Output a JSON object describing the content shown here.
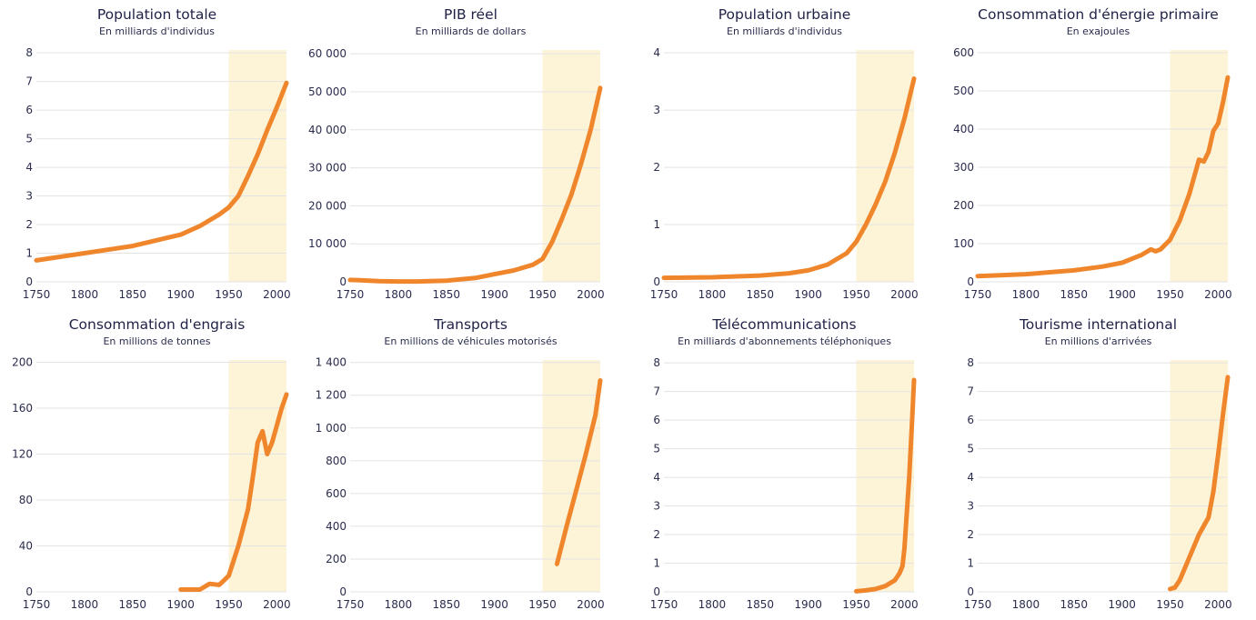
{
  "colors": {
    "line": "#f0862c",
    "highlight_band": "#fdf3d6",
    "grid": "#e3e3e3",
    "text": "#1f2146"
  },
  "chart_data": [
    {
      "type": "line",
      "title": "Population totale",
      "subtitle": "En milliards d'individus",
      "xlabel": "",
      "ylabel": "",
      "xlim": [
        1750,
        2010
      ],
      "ylim": [
        0,
        8
      ],
      "ymax_plot": 8.1,
      "grid": true,
      "highlight_start": 1950,
      "x_ticks": [
        1750,
        1800,
        1850,
        1900,
        1950,
        2000
      ],
      "y_ticks": [
        0,
        1,
        2,
        3,
        4,
        5,
        6,
        7,
        8
      ],
      "y_tick_labels": [
        "0",
        "1",
        "2",
        "3",
        "4",
        "5",
        "6",
        "7",
        "8"
      ],
      "series": [
        {
          "x": [
            1750,
            1800,
            1850,
            1900,
            1920,
            1940,
            1950,
            1960,
            1970,
            1980,
            1990,
            2000,
            2010
          ],
          "values": [
            0.75,
            1.0,
            1.25,
            1.65,
            1.95,
            2.35,
            2.6,
            3.0,
            3.7,
            4.45,
            5.3,
            6.1,
            6.95
          ]
        }
      ]
    },
    {
      "type": "line",
      "title": "PIB réel",
      "subtitle": "En milliards de dollars",
      "xlabel": "",
      "ylabel": "",
      "xlim": [
        1750,
        2010
      ],
      "ylim": [
        0,
        60000
      ],
      "ymax_plot": 61000,
      "grid": true,
      "highlight_start": 1950,
      "x_ticks": [
        1750,
        1800,
        1850,
        1900,
        1950,
        2000
      ],
      "y_ticks": [
        0,
        10000,
        20000,
        30000,
        40000,
        50000,
        60000
      ],
      "y_tick_labels": [
        "0",
        "10 000",
        "20 000",
        "30 000",
        "40 000",
        "50 000",
        "60 000"
      ],
      "series": [
        {
          "x": [
            1750,
            1760,
            1780,
            1800,
            1820,
            1850,
            1880,
            1900,
            1920,
            1940,
            1950,
            1960,
            1970,
            1980,
            1990,
            2000,
            2010
          ],
          "values": [
            500,
            400,
            200,
            100,
            100,
            300,
            1000,
            2000,
            3000,
            4500,
            6000,
            10500,
            16500,
            23000,
            31000,
            40000,
            51000
          ]
        }
      ]
    },
    {
      "type": "line",
      "title": "Population urbaine",
      "subtitle": "En milliards d'individus",
      "xlabel": "",
      "ylabel": "",
      "xlim": [
        1750,
        2010
      ],
      "ylim": [
        0,
        4
      ],
      "ymax_plot": 4.05,
      "grid": true,
      "highlight_start": 1950,
      "x_ticks": [
        1750,
        1800,
        1850,
        1900,
        1950,
        2000
      ],
      "y_ticks": [
        0,
        1,
        2,
        3,
        4
      ],
      "y_tick_labels": [
        "0",
        "1",
        "2",
        "3",
        "4"
      ],
      "series": [
        {
          "x": [
            1750,
            1800,
            1850,
            1880,
            1900,
            1920,
            1940,
            1950,
            1960,
            1970,
            1980,
            1990,
            2000,
            2010
          ],
          "values": [
            0.07,
            0.08,
            0.11,
            0.15,
            0.2,
            0.3,
            0.5,
            0.7,
            1.0,
            1.35,
            1.75,
            2.25,
            2.85,
            3.55
          ]
        }
      ]
    },
    {
      "type": "line",
      "title": "Consommation d'énergie primaire",
      "subtitle": "En exajoules",
      "xlabel": "",
      "ylabel": "",
      "xlim": [
        1750,
        2010
      ],
      "ylim": [
        0,
        600
      ],
      "ymax_plot": 607,
      "grid": true,
      "highlight_start": 1950,
      "x_ticks": [
        1750,
        1800,
        1850,
        1900,
        1950,
        2000
      ],
      "y_ticks": [
        0,
        100,
        200,
        300,
        400,
        500,
        600
      ],
      "y_tick_labels": [
        "0",
        "100",
        "200",
        "300",
        "400",
        "500",
        "600"
      ],
      "series": [
        {
          "x": [
            1750,
            1800,
            1850,
            1880,
            1900,
            1920,
            1930,
            1935,
            1940,
            1950,
            1960,
            1970,
            1980,
            1985,
            1990,
            1995,
            2000,
            2005,
            2010
          ],
          "values": [
            15,
            20,
            30,
            40,
            50,
            70,
            85,
            80,
            85,
            110,
            160,
            230,
            320,
            315,
            340,
            395,
            415,
            470,
            535
          ]
        }
      ]
    },
    {
      "type": "line",
      "title": "Consommation d'engrais",
      "subtitle": "En millions de tonnes",
      "xlabel": "",
      "ylabel": "",
      "xlim": [
        1750,
        2010
      ],
      "ylim": [
        0,
        200
      ],
      "ymax_plot": 202,
      "grid": true,
      "highlight_start": 1950,
      "x_ticks": [
        1750,
        1800,
        1850,
        1900,
        1950,
        2000
      ],
      "y_ticks": [
        0,
        40,
        80,
        120,
        160,
        200
      ],
      "y_tick_labels": [
        "0",
        "40",
        "80",
        "120",
        "160",
        "200"
      ],
      "series": [
        {
          "x": [
            1900,
            1920,
            1930,
            1940,
            1950,
            1960,
            1970,
            1975,
            1980,
            1985,
            1990,
            1995,
            2000,
            2005,
            2010
          ],
          "values": [
            2,
            2,
            7,
            6,
            14,
            40,
            72,
            100,
            130,
            140,
            120,
            130,
            145,
            160,
            172
          ]
        }
      ]
    },
    {
      "type": "line",
      "title": "Transports",
      "subtitle": "En millions de véhicules motorisés",
      "xlabel": "",
      "ylabel": "",
      "xlim": [
        1750,
        2010
      ],
      "ylim": [
        0,
        1400
      ],
      "ymax_plot": 1415,
      "grid": true,
      "highlight_start": 1950,
      "x_ticks": [
        1750,
        1800,
        1850,
        1900,
        1950,
        2000
      ],
      "y_ticks": [
        0,
        200,
        400,
        600,
        800,
        1000,
        1200,
        1400
      ],
      "y_tick_labels": [
        "0",
        "200",
        "400",
        "600",
        "800",
        "1 000",
        "1 200",
        "1 400"
      ],
      "series": [
        {
          "x": [
            1965,
            1975,
            1985,
            1995,
            2005,
            2010
          ],
          "values": [
            170,
            400,
            620,
            840,
            1080,
            1290
          ]
        }
      ]
    },
    {
      "type": "line",
      "title": "Télécommunications",
      "subtitle": "En milliards d'abonnements téléphoniques",
      "xlabel": "",
      "ylabel": "",
      "xlim": [
        1750,
        2010
      ],
      "ylim": [
        0,
        8
      ],
      "ymax_plot": 8.1,
      "grid": true,
      "highlight_start": 1950,
      "x_ticks": [
        1750,
        1800,
        1850,
        1900,
        1950,
        2000
      ],
      "y_ticks": [
        0,
        1,
        2,
        3,
        4,
        5,
        6,
        7,
        8
      ],
      "y_tick_labels": [
        "0",
        "1",
        "2",
        "3",
        "4",
        "5",
        "6",
        "7",
        "8"
      ],
      "series": [
        {
          "x": [
            1950,
            1960,
            1970,
            1980,
            1990,
            1995,
            1998,
            2000,
            2002,
            2005,
            2008,
            2010
          ],
          "values": [
            0.02,
            0.05,
            0.1,
            0.2,
            0.4,
            0.65,
            0.9,
            1.5,
            2.5,
            4.0,
            6.0,
            7.4
          ]
        }
      ]
    },
    {
      "type": "line",
      "title": "Tourisme international",
      "subtitle": "En millions d'arrivées",
      "xlabel": "",
      "ylabel": "",
      "xlim": [
        1750,
        2010
      ],
      "ylim": [
        0,
        8
      ],
      "ymax_plot": 8.1,
      "grid": true,
      "highlight_start": 1950,
      "x_ticks": [
        1750,
        1800,
        1850,
        1900,
        1950,
        2000
      ],
      "y_ticks": [
        0,
        1,
        2,
        3,
        4,
        5,
        6,
        7,
        8
      ],
      "y_tick_labels": [
        "0",
        "1",
        "2",
        "3",
        "4",
        "5",
        "6",
        "7",
        "8"
      ],
      "series": [
        {
          "x": [
            1950,
            1955,
            1960,
            1970,
            1980,
            1990,
            1995,
            2000,
            2005,
            2010
          ],
          "values": [
            0.1,
            0.15,
            0.4,
            1.2,
            2.0,
            2.6,
            3.5,
            4.8,
            6.2,
            7.5
          ]
        }
      ]
    }
  ]
}
